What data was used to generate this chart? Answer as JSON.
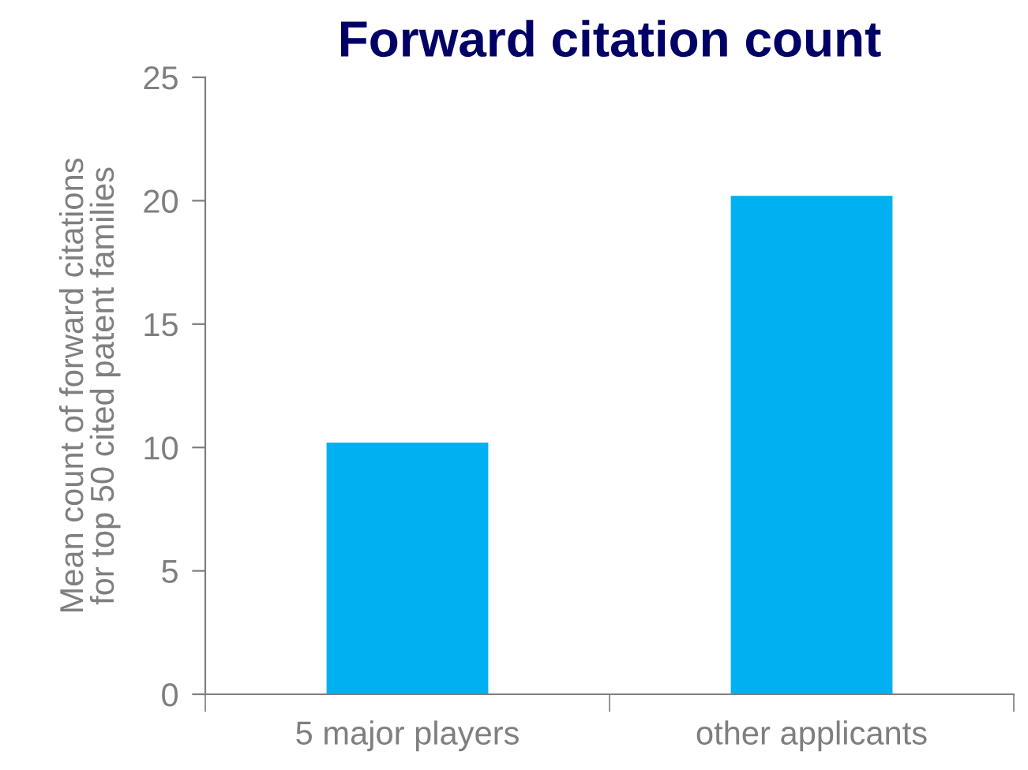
{
  "chart_data": {
    "type": "bar",
    "title": "Forward citation count",
    "ylabel": "Mean count of forward citations\nfor top 50 cited patent families",
    "categories": [
      "5 major players",
      "other applicants"
    ],
    "values": [
      10.2,
      20.2
    ],
    "color": "#00b0f0",
    "ylim": [
      0,
      25
    ],
    "yticks": [
      0,
      5,
      10,
      15,
      20,
      25
    ],
    "grid": false,
    "legend": false
  }
}
